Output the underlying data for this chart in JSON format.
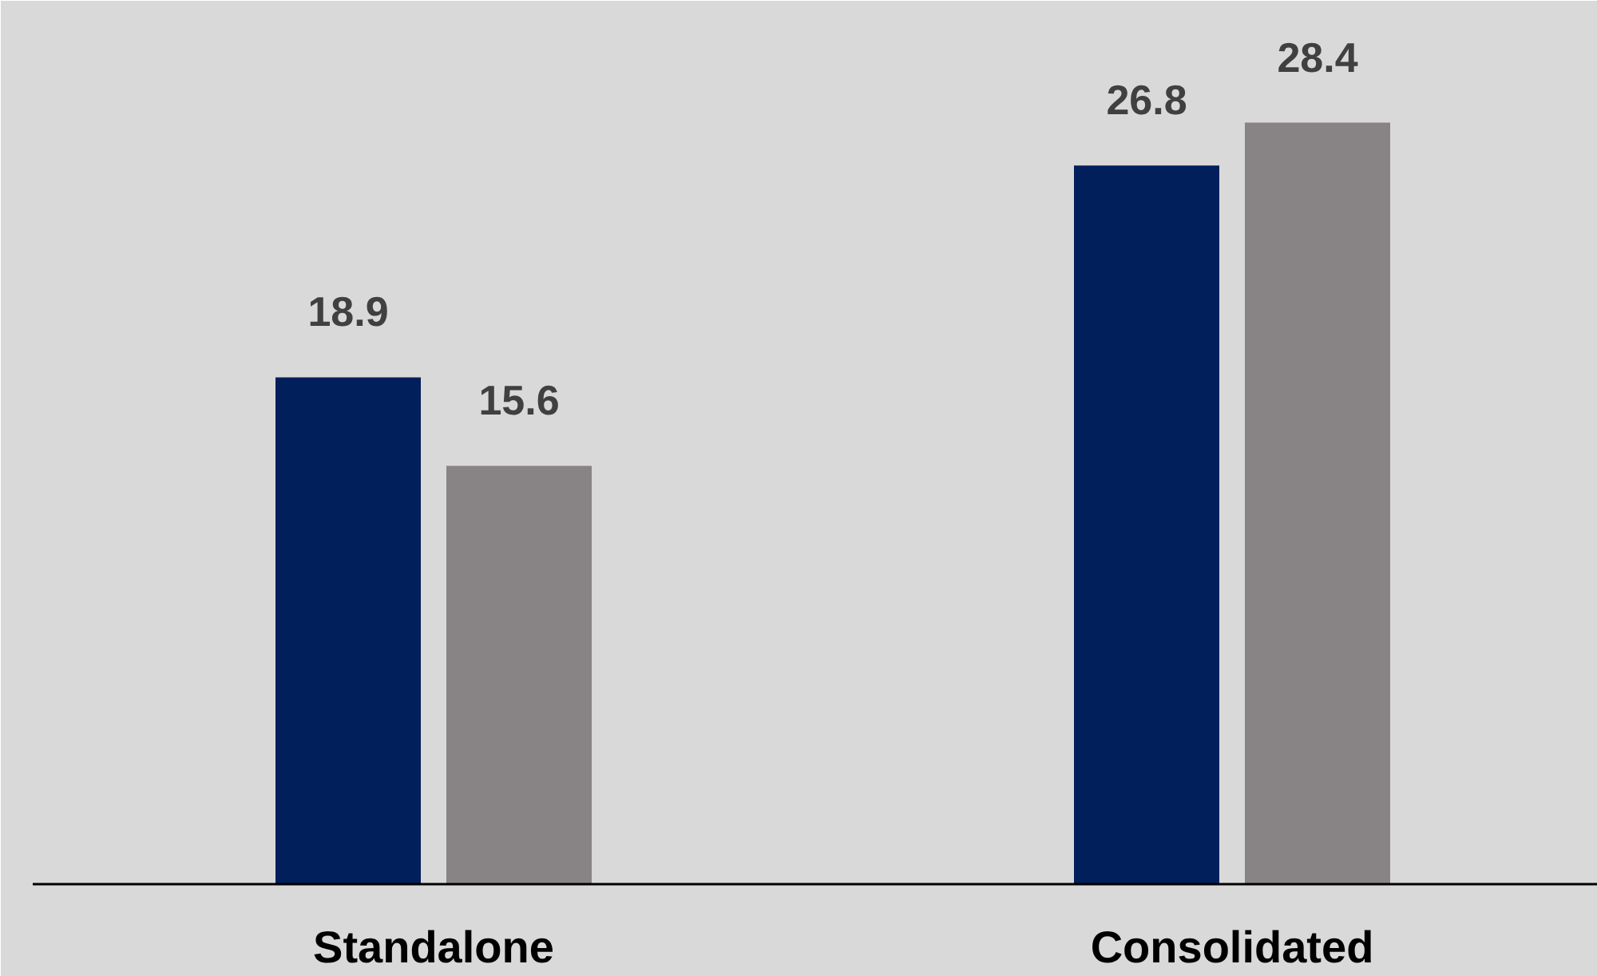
{
  "chart_data": {
    "type": "bar",
    "categories": [
      "Standalone",
      "Consolidated"
    ],
    "series": [
      {
        "color": "#001f5b",
        "values": [
          18.9,
          26.8
        ]
      },
      {
        "color": "#888384",
        "values": [
          15.6,
          28.4
        ]
      }
    ],
    "data_labels": true,
    "grid": false,
    "tick_labels": "x"
  }
}
